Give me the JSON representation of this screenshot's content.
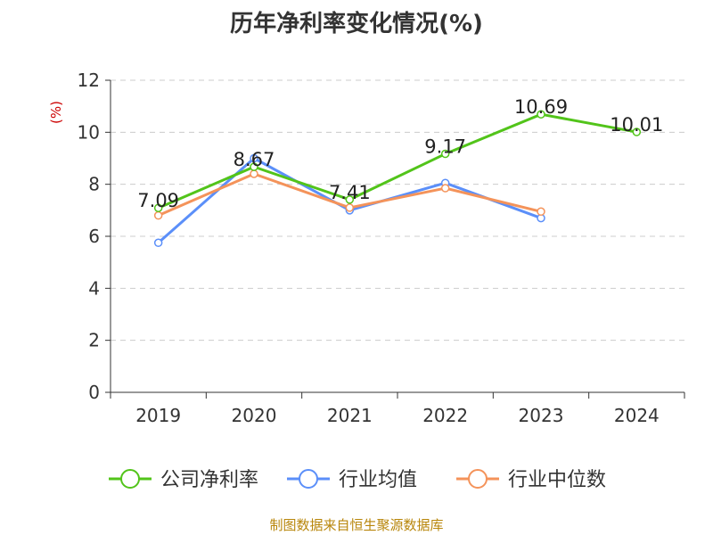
{
  "chart_data": {
    "type": "line",
    "title": "历年净利率变化情况(%)",
    "ylabel": "(%)",
    "xlabel": "",
    "categories": [
      "2019",
      "2020",
      "2021",
      "2022",
      "2023",
      "2024"
    ],
    "ylim": [
      0,
      12
    ],
    "yticks": [
      0,
      2,
      4,
      6,
      8,
      10,
      12
    ],
    "grid": true,
    "legend_position": "bottom",
    "series": [
      {
        "name": "公司净利率",
        "color": "#52c41a",
        "values": [
          7.09,
          8.67,
          7.41,
          9.17,
          10.69,
          10.01
        ],
        "labels": [
          "7.09",
          "8.67",
          "7.41",
          "9.17",
          "10.69",
          "10.01"
        ]
      },
      {
        "name": "行业均值",
        "color": "#5b8ff9",
        "values": [
          5.75,
          9.0,
          7.0,
          8.05,
          6.7,
          null
        ]
      },
      {
        "name": "行业中位数",
        "color": "#f4935a",
        "values": [
          6.8,
          8.4,
          7.1,
          7.85,
          6.95,
          null
        ]
      }
    ]
  },
  "footer": {
    "source": "制图数据来自恒生聚源数据库"
  }
}
